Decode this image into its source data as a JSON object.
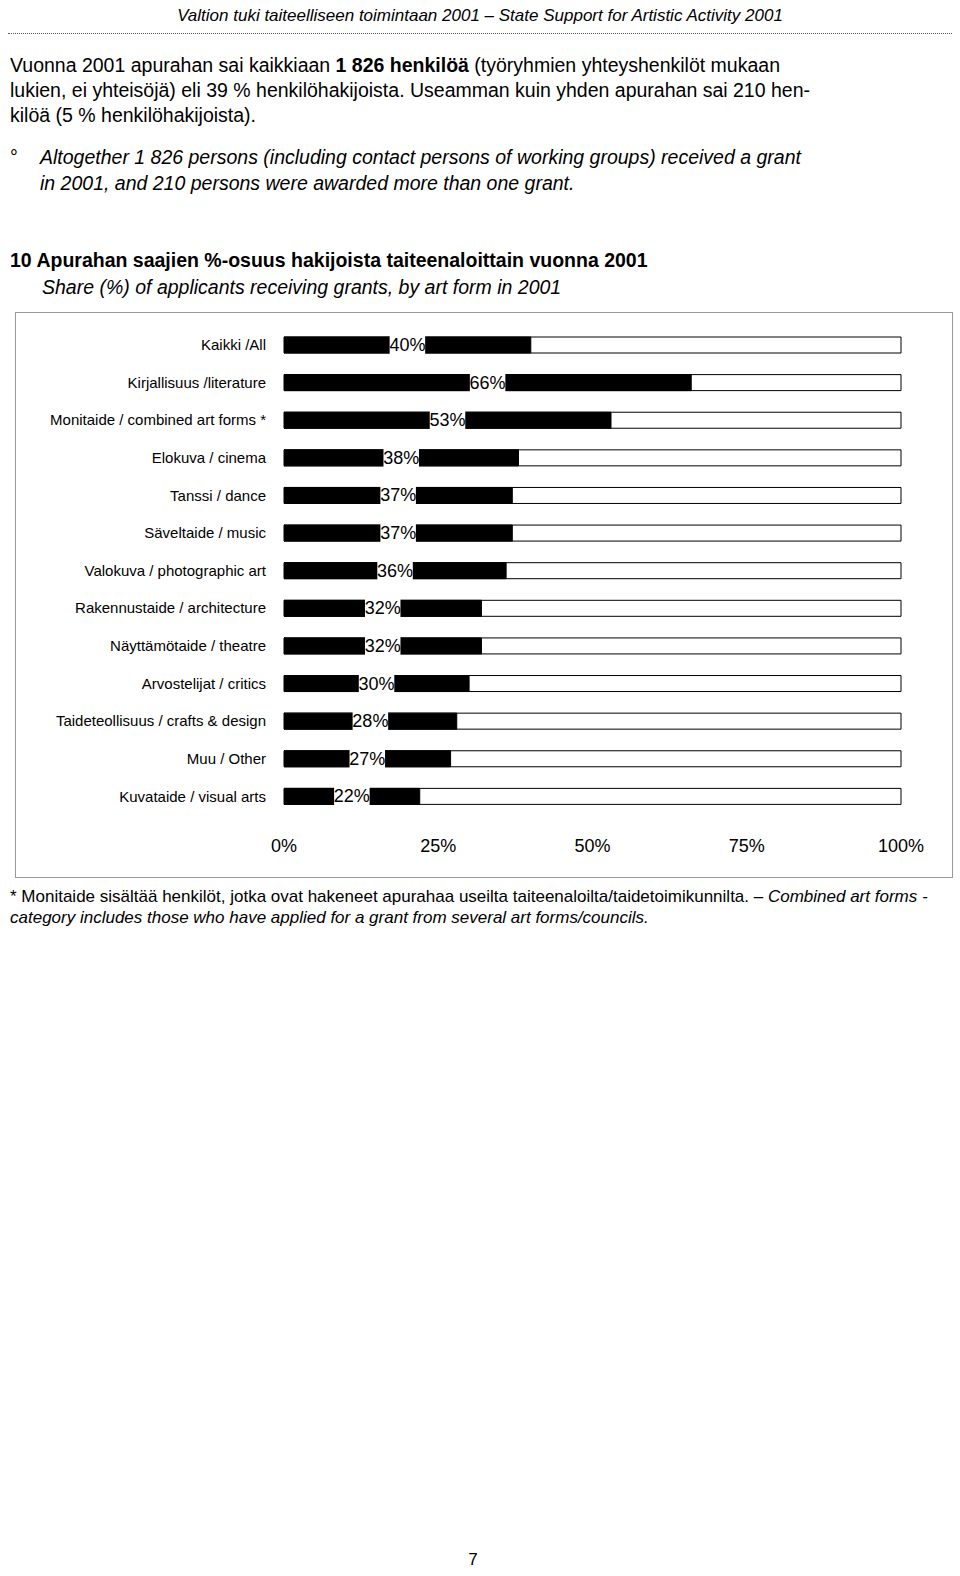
{
  "header": "Valtion tuki taiteelliseen toimintaan 2001 – State Support for Artistic Activity 2001",
  "paragraph": [
    [
      {
        "text": "Vuonna 2001 apurahan sai kaikkiaan "
      },
      {
        "text": "1 826 henkilöä",
        "bold": true
      },
      {
        "text": " (työryhmien yhteyshenkilöt mukaan"
      }
    ],
    [
      {
        "text": "lukien, ei yhteisöjä) eli 39 % henkilöhakijoista. Useamman kuin yhden apurahan sai 210 hen-"
      }
    ],
    [
      {
        "text": "kilöä (5 % henkilöhakijoista)."
      }
    ]
  ],
  "bullet": {
    "symbol": "°",
    "lines": [
      "Altogether 1 826 persons (including contact persons of working groups) received a grant",
      "in 2001, and 210 persons were awarded more than one grant."
    ]
  },
  "chart_data": {
    "type": "bar",
    "orientation": "horizontal",
    "title": "10 Apurahan saajien %-osuus hakijoista taiteenaloittain vuonna 2001",
    "subtitle": "Share (%) of applicants receiving grants, by art form in 2001",
    "categories": [
      "Kaikki /All",
      "Kirjallisuus /literature",
      "Monitaide / combined art forms *",
      "Elokuva / cinema",
      "Tanssi / dance",
      "Säveltaide / music",
      "Valokuva / photographic art",
      "Rakennustaide / architecture",
      "Näyttämötaide / theatre",
      "Arvostelijat / critics",
      "Taideteollisuus / crafts & design",
      "Muu / Other",
      "Kuvataide / visual arts"
    ],
    "values": [
      40,
      66,
      53,
      38,
      37,
      37,
      36,
      32,
      32,
      30,
      28,
      27,
      22
    ],
    "value_labels": [
      "40%",
      "66%",
      "53%",
      "38%",
      "37%",
      "37%",
      "36%",
      "32%",
      "32%",
      "30%",
      "28%",
      "27%",
      "22%"
    ],
    "data_labels": true,
    "color": "#000000",
    "grid": false,
    "xlim": [
      0,
      100
    ],
    "xticks": [
      {
        "value": 0,
        "label": "0%"
      },
      {
        "value": 25,
        "label": "25%"
      },
      {
        "value": 50,
        "label": "50%"
      },
      {
        "value": 75,
        "label": "75%"
      },
      {
        "value": 100,
        "label": "100%"
      }
    ]
  },
  "footnote": [
    {
      "text": "* Monitaide sisältää henkilöt, jotka ovat hakeneet apurahaa useilta taiteenaloilta/taidetoimikunnilta. – "
    },
    {
      "text": "Combined art forms -category includes those who have applied for a grant from several art forms/councils.",
      "italic": true
    }
  ],
  "page_number": "7"
}
